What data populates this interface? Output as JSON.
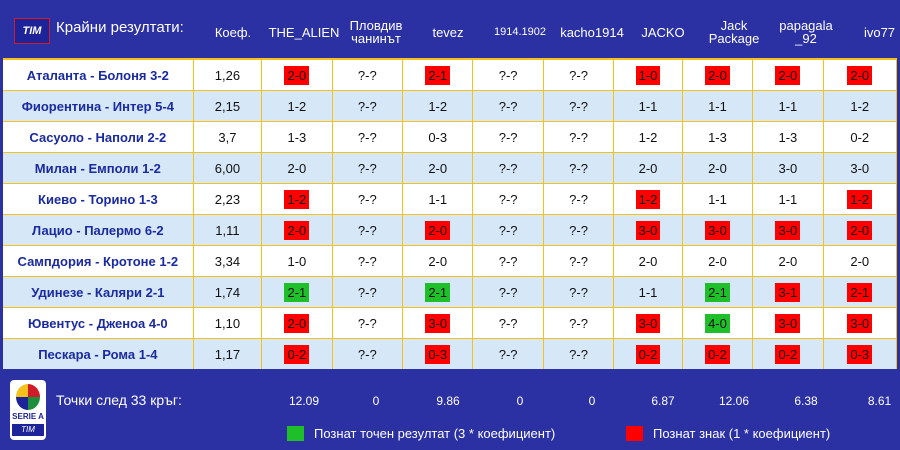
{
  "header": {
    "logo": "TIM",
    "title": "Крайни резултати:",
    "columns": [
      "Коеф.",
      "THE_ALIEN",
      "Пловдив чанинът",
      "tevez",
      "1914.1902",
      "kacho1914",
      "JACKO",
      "Jack Package",
      "papagala _92",
      "ivo77"
    ]
  },
  "rows": [
    {
      "match": "Аталанта - Болоня 3-2",
      "odds": "1,26",
      "picks": [
        "2-0",
        "?-?",
        "2-1",
        "?-?",
        "?-?",
        "1-0",
        "2-0",
        "2-0",
        "2-0"
      ],
      "marks": [
        "red",
        "",
        "red",
        "",
        "",
        "red",
        "red",
        "red",
        "red"
      ]
    },
    {
      "match": "Фиорентина - Интер 5-4",
      "odds": "2,15",
      "picks": [
        "1-2",
        "?-?",
        "1-2",
        "?-?",
        "?-?",
        "1-1",
        "1-1",
        "1-1",
        "1-2"
      ],
      "marks": [
        "",
        "",
        "",
        "",
        "",
        "",
        "",
        "",
        ""
      ]
    },
    {
      "match": "Сасуоло - Наполи 2-2",
      "odds": "3,7",
      "picks": [
        "1-3",
        "?-?",
        "0-3",
        "?-?",
        "?-?",
        "1-2",
        "1-3",
        "1-3",
        "0-2"
      ],
      "marks": [
        "",
        "",
        "",
        "",
        "",
        "",
        "",
        "",
        ""
      ]
    },
    {
      "match": "Милан - Емполи 1-2",
      "odds": "6,00",
      "picks": [
        "2-0",
        "?-?",
        "2-0",
        "?-?",
        "?-?",
        "2-0",
        "2-0",
        "3-0",
        "3-0"
      ],
      "marks": [
        "",
        "",
        "",
        "",
        "",
        "",
        "",
        "",
        ""
      ]
    },
    {
      "match": "Киево - Торино 1-3",
      "odds": "2,23",
      "picks": [
        "1-2",
        "?-?",
        "1-1",
        "?-?",
        "?-?",
        "1-2",
        "1-1",
        "1-1",
        "1-2"
      ],
      "marks": [
        "red",
        "",
        "",
        "",
        "",
        "red",
        "",
        "",
        "red"
      ]
    },
    {
      "match": "Лацио - Палермо 6-2",
      "odds": "1,11",
      "picks": [
        "2-0",
        "?-?",
        "2-0",
        "?-?",
        "?-?",
        "3-0",
        "3-0",
        "3-0",
        "2-0"
      ],
      "marks": [
        "red",
        "",
        "red",
        "",
        "",
        "red",
        "red",
        "red",
        "red"
      ]
    },
    {
      "match": "Сампдория - Кротоне 1-2",
      "odds": "3,34",
      "picks": [
        "1-0",
        "?-?",
        "2-0",
        "?-?",
        "?-?",
        "2-0",
        "2-0",
        "2-0",
        "2-0"
      ],
      "marks": [
        "",
        "",
        "",
        "",
        "",
        "",
        "",
        "",
        ""
      ]
    },
    {
      "match": "Удинезе - Каляри 2-1",
      "odds": "1,74",
      "picks": [
        "2-1",
        "?-?",
        "2-1",
        "?-?",
        "?-?",
        "1-1",
        "2-1",
        "3-1",
        "2-1"
      ],
      "marks": [
        "green",
        "",
        "green",
        "",
        "",
        "",
        "green",
        "red",
        "red"
      ]
    },
    {
      "match": "Ювентус - Дженоа 4-0",
      "odds": "1,10",
      "picks": [
        "2-0",
        "?-?",
        "3-0",
        "?-?",
        "?-?",
        "3-0",
        "4-0",
        "3-0",
        "3-0"
      ],
      "marks": [
        "red",
        "",
        "red",
        "",
        "",
        "red",
        "green",
        "red",
        "red"
      ]
    },
    {
      "match": "Пескара - Рома 1-4",
      "odds": "1,17",
      "picks": [
        "0-2",
        "?-?",
        "0-3",
        "?-?",
        "?-?",
        "0-2",
        "0-2",
        "0-2",
        "0-3"
      ],
      "marks": [
        "red",
        "",
        "red",
        "",
        "",
        "red",
        "red",
        "red",
        "red"
      ]
    }
  ],
  "footer": {
    "seal_text": "SERIE A",
    "seal_tim": "TIM",
    "points_label": "Точки след 33 кръг:",
    "points": [
      "12.09",
      "0",
      "9.86",
      "0",
      "0",
      "6.87",
      "12.06",
      "6.38",
      "8.61"
    ],
    "legend_exact": "Познат точен резултат (3 * коефициент)",
    "legend_sign": "Познат знак (1 * коефициент)"
  },
  "colors": {
    "exact": "#1fbf2a",
    "sign": "#ff0000",
    "accent": "#f4c21b",
    "bg": "#2b30a3"
  }
}
